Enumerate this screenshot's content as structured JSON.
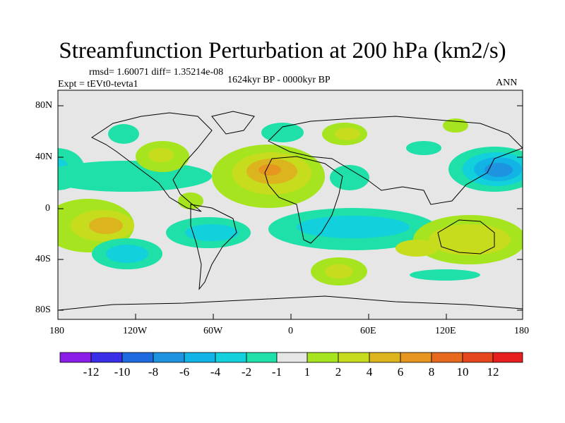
{
  "plot": {
    "title": "Streamfunction Perturbation at 200 hPa (km2/s)",
    "stats": "rmsd= 1.60071 diff= 1.35214e-08",
    "experiment": "Expt = tEVt0-tevta1",
    "period": "1624kyr BP - 0000kyr BP",
    "season": "ANN"
  },
  "axes": {
    "y_ticks": [
      "80N",
      "40N",
      "0",
      "40S",
      "80S"
    ],
    "x_ticks": [
      "180",
      "120W",
      "60W",
      "0",
      "60E",
      "120E",
      "180"
    ]
  },
  "colorbar": {
    "labels": [
      "-12",
      "-10",
      "-8",
      "-6",
      "-4",
      "-2",
      "-1",
      "1",
      "2",
      "4",
      "6",
      "8",
      "10",
      "12"
    ],
    "colors": [
      "#8a1ee6",
      "#3a2ee6",
      "#1e6be0",
      "#1e93e0",
      "#12b4e6",
      "#12d0dc",
      "#1ee0a8",
      "#e6e6e6",
      "#a5e41e",
      "#c8dc1e",
      "#dcb41e",
      "#e6961e",
      "#e6691e",
      "#e6461e",
      "#e61e1e"
    ]
  }
}
